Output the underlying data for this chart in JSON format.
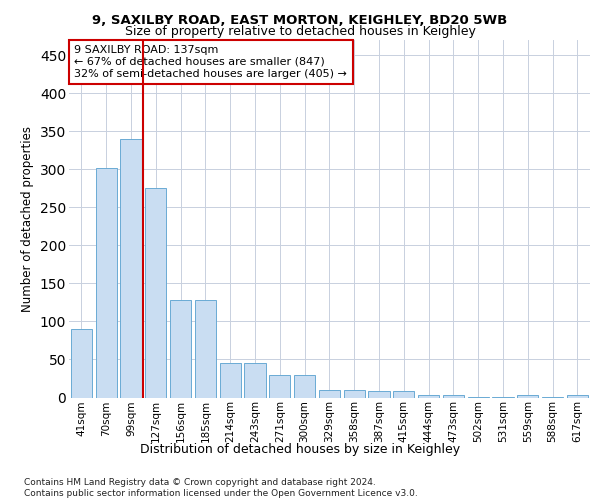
{
  "title_line1": "9, SAXILBY ROAD, EAST MORTON, KEIGHLEY, BD20 5WB",
  "title_line2": "Size of property relative to detached houses in Keighley",
  "xlabel": "Distribution of detached houses by size in Keighley",
  "ylabel": "Number of detached properties",
  "categories": [
    "41sqm",
    "70sqm",
    "99sqm",
    "127sqm",
    "156sqm",
    "185sqm",
    "214sqm",
    "243sqm",
    "271sqm",
    "300sqm",
    "329sqm",
    "358sqm",
    "387sqm",
    "415sqm",
    "444sqm",
    "473sqm",
    "502sqm",
    "531sqm",
    "559sqm",
    "588sqm",
    "617sqm"
  ],
  "values": [
    90,
    302,
    340,
    275,
    128,
    128,
    46,
    46,
    30,
    30,
    10,
    10,
    8,
    8,
    3,
    3,
    1,
    1,
    3,
    1,
    3
  ],
  "bar_color": "#c9ddf2",
  "bar_edge_color": "#6aaad4",
  "property_line_color": "#cc0000",
  "annotation_text": "9 SAXILBY ROAD: 137sqm\n← 67% of detached houses are smaller (847)\n32% of semi-detached houses are larger (405) →",
  "annotation_box_color": "#ffffff",
  "annotation_box_edge_color": "#cc0000",
  "ylim": [
    0,
    470
  ],
  "yticks": [
    0,
    50,
    100,
    150,
    200,
    250,
    300,
    350,
    400,
    450
  ],
  "background_color": "#ffffff",
  "grid_color": "#c8d0de",
  "footer_text": "Contains HM Land Registry data © Crown copyright and database right 2024.\nContains public sector information licensed under the Open Government Licence v3.0."
}
